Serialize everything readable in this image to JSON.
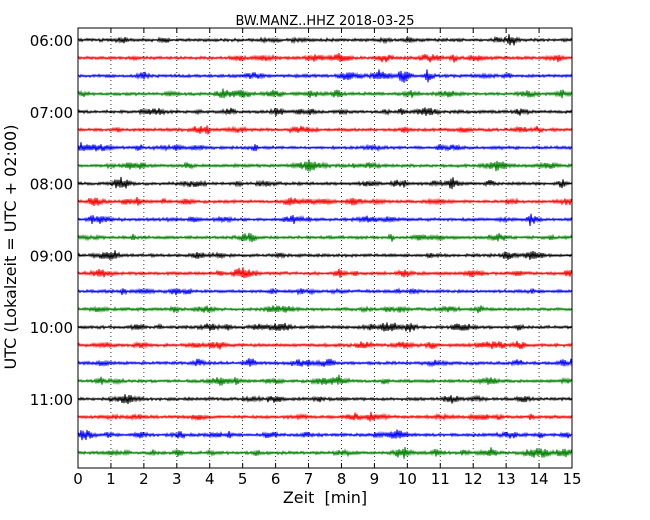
{
  "chart_data": {
    "type": "line",
    "title": "BW.MANZ..HHZ 2018-03-25",
    "xlabel": "Zeit  [min]",
    "ylabel": "UTC (Lokalzeit = UTC + 02:00)",
    "xlim": [
      0,
      15
    ],
    "xticks": [
      0,
      1,
      2,
      3,
      4,
      5,
      6,
      7,
      8,
      9,
      10,
      11,
      12,
      13,
      14,
      15
    ],
    "xtick_labels": [
      "0",
      "1",
      "2",
      "3",
      "4",
      "5",
      "6",
      "7",
      "8",
      "9",
      "10",
      "11",
      "12",
      "13",
      "14",
      "15"
    ],
    "ytick_labels": [
      "06:00",
      "07:00",
      "08:00",
      "09:00",
      "10:00",
      "11:00"
    ],
    "trace_minutes": 15,
    "trace_colors": [
      "#000000",
      "#ff0000",
      "#0000ff",
      "#008000"
    ],
    "traces": [
      {
        "start": "06:00"
      },
      {
        "start": "06:15"
      },
      {
        "start": "06:30"
      },
      {
        "start": "06:45"
      },
      {
        "start": "07:00"
      },
      {
        "start": "07:15"
      },
      {
        "start": "07:30"
      },
      {
        "start": "07:45"
      },
      {
        "start": "08:00"
      },
      {
        "start": "08:15"
      },
      {
        "start": "08:30"
      },
      {
        "start": "08:45"
      },
      {
        "start": "09:00"
      },
      {
        "start": "09:15"
      },
      {
        "start": "09:30"
      },
      {
        "start": "09:45"
      },
      {
        "start": "10:00"
      },
      {
        "start": "10:15"
      },
      {
        "start": "10:30"
      },
      {
        "start": "10:45"
      },
      {
        "start": "11:00"
      },
      {
        "start": "11:15"
      },
      {
        "start": "11:30"
      },
      {
        "start": "11:45"
      }
    ],
    "grid": "vertical dotted at each minute",
    "legend": "none"
  }
}
